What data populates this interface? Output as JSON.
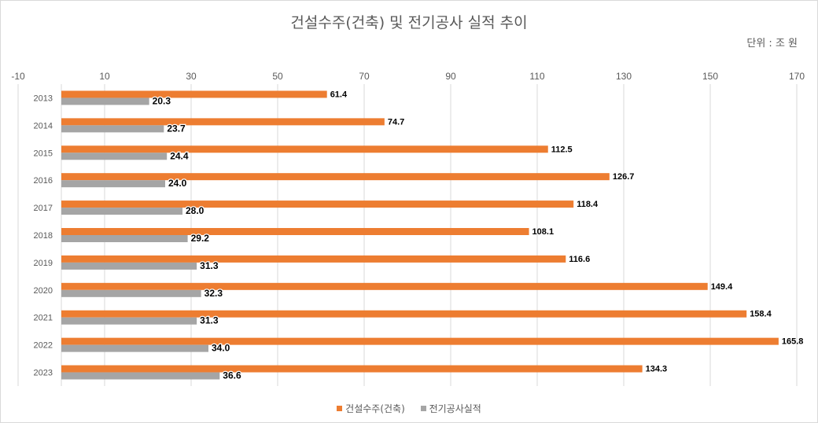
{
  "chart_data": {
    "type": "bar",
    "orientation": "horizontal",
    "title": "건설수주(건축) 및 전기공사 실적 추이",
    "unit_note": "단위 : 조 원",
    "categories": [
      "2013",
      "2014",
      "2015",
      "2016",
      "2017",
      "2018",
      "2019",
      "2020",
      "2021",
      "2022",
      "2023"
    ],
    "series": [
      {
        "name": "건설수주(건축)",
        "color": "#ed7d31",
        "values": [
          61.4,
          74.7,
          112.5,
          126.7,
          118.4,
          108.1,
          116.6,
          149.4,
          158.4,
          165.8,
          134.3
        ]
      },
      {
        "name": "전기공사실적",
        "color": "#a5a5a5",
        "values": [
          20.3,
          23.7,
          24.4,
          24.0,
          28.0,
          29.2,
          31.3,
          32.3,
          31.3,
          34.0,
          36.6
        ]
      }
    ],
    "xlim": [
      -10,
      170
    ],
    "xticks": [
      "-10",
      "10",
      "30",
      "50",
      "70",
      "90",
      "110",
      "130",
      "150",
      "170"
    ],
    "grid": true,
    "legend": "bottom"
  }
}
